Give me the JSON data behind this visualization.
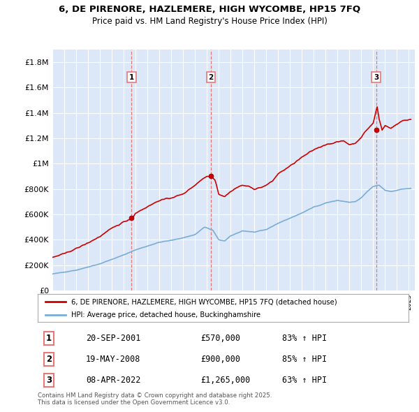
{
  "title": "6, DE PIRENORE, HAZLEMERE, HIGH WYCOMBE, HP15 7FQ",
  "subtitle": "Price paid vs. HM Land Registry's House Price Index (HPI)",
  "ylim": [
    0,
    1900000
  ],
  "yticks": [
    0,
    200000,
    400000,
    600000,
    800000,
    1000000,
    1200000,
    1400000,
    1600000,
    1800000
  ],
  "bg_color": "#dce8f8",
  "sale_prices": [
    570000,
    900000,
    1265000
  ],
  "sale_labels": [
    "1",
    "2",
    "3"
  ],
  "legend_line1": "6, DE PIRENORE, HAZLEMERE, HIGH WYCOMBE, HP15 7FQ (detached house)",
  "legend_line2": "HPI: Average price, detached house, Buckinghamshire",
  "table_rows": [
    [
      "1",
      "20-SEP-2001",
      "£570,000",
      "83% ↑ HPI"
    ],
    [
      "2",
      "19-MAY-2008",
      "£900,000",
      "85% ↑ HPI"
    ],
    [
      "3",
      "08-APR-2022",
      "£1,265,000",
      "63% ↑ HPI"
    ]
  ],
  "footer": "Contains HM Land Registry data © Crown copyright and database right 2025.\nThis data is licensed under the Open Government Licence v3.0.",
  "red_color": "#cc0000",
  "blue_color": "#7aacd6",
  "vline_color": "#e87878"
}
